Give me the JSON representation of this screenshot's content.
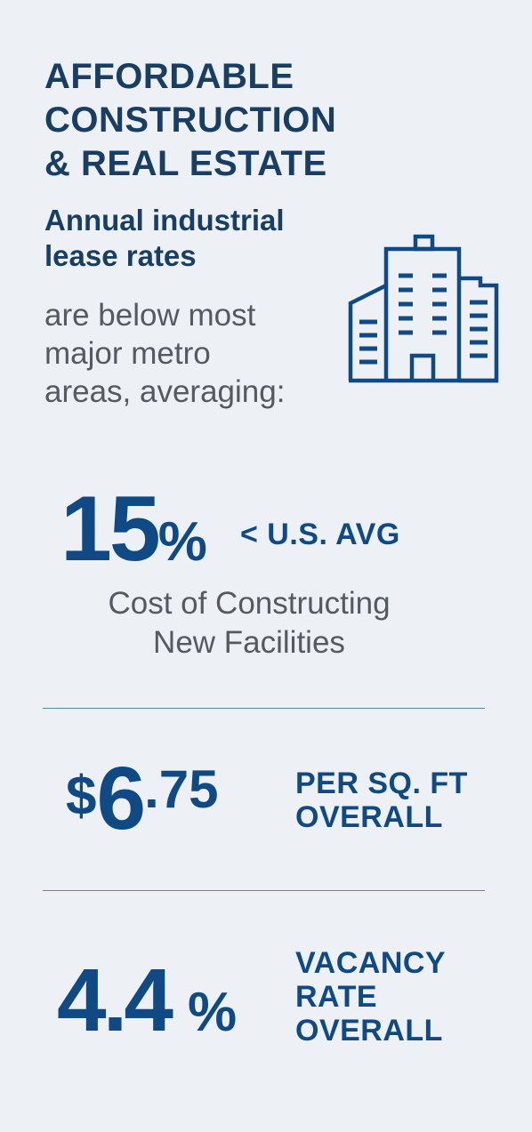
{
  "header": {
    "title_lines": [
      "AFFORDABLE",
      "CONSTRUCTION",
      "& REAL ESTATE"
    ],
    "subtitle_bold_lines": [
      "Annual industrial",
      "lease rates"
    ],
    "subtitle_light_lines": [
      "are below most",
      "major metro",
      "areas, averaging:"
    ]
  },
  "icon": {
    "name": "office-building-icon",
    "color": "#0f4a84"
  },
  "stats": {
    "construction": {
      "number": "15",
      "symbol": "%",
      "label": "< U.S. AVG",
      "description_lines": [
        "Cost of Constructing",
        "New Facilities"
      ]
    },
    "lease": {
      "currency": "$",
      "whole": "6",
      "fraction": ".75",
      "label_lines": [
        "PER SQ. FT",
        "OVERALL"
      ]
    },
    "vacancy": {
      "number": "4.4",
      "symbol": "%",
      "label_lines": [
        "VACANCY",
        "RATE",
        "OVERALL"
      ]
    }
  },
  "colors": {
    "background": "#edf0f5",
    "heading": "#193e63",
    "accent": "#0f4a84",
    "body_text": "#545a60",
    "divider": "#5586bc"
  }
}
